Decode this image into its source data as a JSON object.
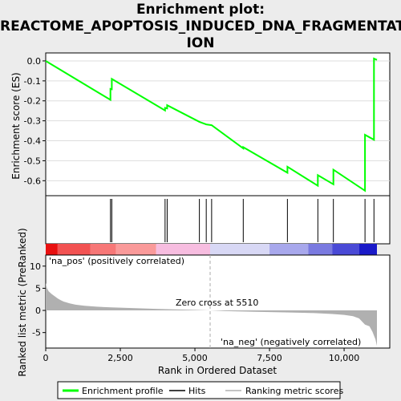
{
  "title_line1": "Enrichment plot:",
  "title_line2": "REACTOME_APOPTOSIS_INDUCED_DNA_FRAGMENTAT",
  "title_line3": "ION",
  "colors": {
    "profile": "#00ff00",
    "hits": "#000000",
    "metric": "#b0b0b0",
    "pos_label": "#ff0000",
    "neg_label": "#0000cc",
    "zero_line": "#aaaaaa"
  },
  "chart_data": {
    "type": "line",
    "n_genes": 11100,
    "es_panel": {
      "ylabel": "Enrichment score (ES)",
      "yticks": [
        0.0,
        -0.1,
        -0.2,
        -0.3,
        -0.4,
        -0.5,
        -0.6
      ],
      "ytick_labels": [
        "0.0",
        "-0.1",
        "-0.2",
        "-0.3",
        "-0.4",
        "-0.5",
        "-0.6"
      ],
      "ylim": [
        -0.675,
        0.04
      ],
      "series": [
        {
          "name": "Enrichment profile",
          "x": [
            0,
            2170,
            2170,
            2215,
            2215,
            4000,
            4000,
            4070,
            4070,
            5150,
            5150,
            5380,
            5380,
            5560,
            5560,
            6620,
            6620,
            8100,
            8100,
            9120,
            9120,
            9640,
            9640,
            10700,
            10700,
            11000,
            11000,
            11100
          ],
          "y": [
            0.0,
            -0.195,
            -0.14,
            -0.142,
            -0.09,
            -0.248,
            -0.235,
            -0.238,
            -0.222,
            -0.305,
            -0.305,
            -0.318,
            -0.318,
            -0.322,
            -0.322,
            -0.438,
            -0.432,
            -0.56,
            -0.53,
            -0.625,
            -0.572,
            -0.618,
            -0.545,
            -0.65,
            -0.37,
            -0.395,
            0.012,
            0.005
          ]
        }
      ]
    },
    "hits": [
      2170,
      2215,
      4000,
      4070,
      5150,
      5380,
      5560,
      6620,
      8100,
      9120,
      9640,
      10700,
      11000
    ],
    "metric_panel": {
      "ylabel": "Ranked list metric (PreRanked)",
      "yticks": [
        10,
        5,
        0,
        -5
      ],
      "ytick_labels": [
        "10",
        "5",
        "0",
        "-5"
      ],
      "ylim": [
        -8.5,
        12.5
      ],
      "x": [
        0,
        40,
        100,
        200,
        300,
        400,
        500,
        600,
        800,
        1000,
        1300,
        1700,
        2200,
        3000,
        3700,
        4300,
        5000,
        5510,
        6000,
        7000,
        8000,
        9000,
        9600,
        10000,
        10300,
        10500,
        10600,
        10700,
        10850,
        10950,
        11050,
        11100
      ],
      "values": [
        6.2,
        5.0,
        4.3,
        3.7,
        3.2,
        2.7,
        2.3,
        2.0,
        1.6,
        1.3,
        1.05,
        0.85,
        0.7,
        0.5,
        0.35,
        0.25,
        0.12,
        0.0,
        -0.15,
        -0.3,
        -0.45,
        -0.6,
        -0.8,
        -1.0,
        -1.3,
        -1.8,
        -2.5,
        -3.2,
        -3.6,
        -4.8,
        -6.5,
        -8.0
      ],
      "zero_cross_label": "Zero cross at 5510",
      "zero_cross": 5510,
      "pos_label": "'na_pos' (positively correlated)",
      "neg_label": "'na_neg' (negatively correlated)"
    },
    "xlabel": "Rank in Ordered Dataset",
    "xticks": [
      0,
      2500,
      5000,
      7500,
      10000
    ],
    "xtick_labels": [
      "0",
      "2,500",
      "5,000",
      "7,500",
      "10,000"
    ],
    "legend": [
      "Enrichment profile",
      "Hits",
      "Ranking metric scores"
    ],
    "legend_position": "bottom"
  }
}
